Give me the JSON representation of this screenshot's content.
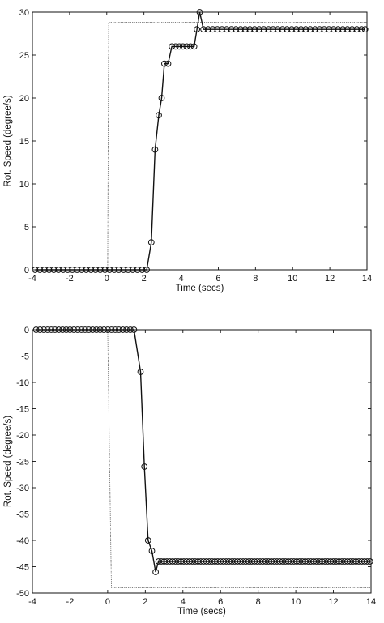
{
  "chart_data": [
    {
      "type": "line",
      "xlabel": "Time (secs)",
      "ylabel": "Rot. Speed (degree/s)",
      "xlim": [
        -4,
        14
      ],
      "ylim": [
        0,
        30
      ],
      "xticks": [
        -4,
        -2,
        0,
        2,
        4,
        6,
        8,
        10,
        12,
        14
      ],
      "yticks": [
        0,
        5,
        10,
        15,
        20,
        25,
        30
      ],
      "x_tick_labels": [
        "-4",
        "-2",
        "0",
        "2",
        "4",
        "6",
        "8",
        "10",
        "12",
        "14"
      ],
      "y_tick_labels": [
        "0",
        "5",
        "10",
        "15",
        "20",
        "25",
        "30"
      ],
      "grid": false,
      "series": [
        {
          "style": "dotted",
          "x": [
            -4,
            0.05,
            0.1,
            14
          ],
          "y": [
            0,
            0,
            28.8,
            28.8
          ]
        },
        {
          "style": "solid-circles",
          "x": [
            -3.85,
            -3.6,
            -3.35,
            -3.1,
            -2.85,
            -2.6,
            -2.35,
            -2.1,
            -1.85,
            -1.6,
            -1.35,
            -1.1,
            -0.85,
            -0.6,
            -0.35,
            -0.1,
            0.15,
            0.4,
            0.65,
            0.9,
            1.15,
            1.4,
            1.65,
            1.9,
            2.15,
            2.4,
            2.6,
            2.8,
            2.95,
            3.1,
            3.3,
            3.5,
            3.7,
            3.9,
            4.1,
            4.3,
            4.5,
            4.7,
            4.85,
            5.0,
            5.2,
            5.45,
            5.7,
            5.95,
            6.2,
            6.45,
            6.7,
            6.95,
            7.2,
            7.45,
            7.7,
            7.95,
            8.2,
            8.45,
            8.7,
            8.95,
            9.2,
            9.45,
            9.7,
            9.95,
            10.2,
            10.45,
            10.7,
            10.95,
            11.2,
            11.45,
            11.7,
            11.95,
            12.2,
            12.45,
            12.7,
            12.95,
            13.2,
            13.45,
            13.7,
            13.9
          ],
          "y": [
            0,
            0,
            0,
            0,
            0,
            0,
            0,
            0,
            0,
            0,
            0,
            0,
            0,
            0,
            0,
            0,
            0,
            0,
            0,
            0,
            0,
            0,
            0,
            0,
            0,
            3.2,
            14,
            18,
            20,
            24,
            24,
            26,
            26,
            26,
            26,
            26,
            26,
            26,
            28,
            30,
            28,
            28,
            28,
            28,
            28,
            28,
            28,
            28,
            28,
            28,
            28,
            28,
            28,
            28,
            28,
            28,
            28,
            28,
            28,
            28,
            28,
            28,
            28,
            28,
            28,
            28,
            28,
            28,
            28,
            28,
            28,
            28,
            28,
            28,
            28,
            28
          ]
        }
      ]
    },
    {
      "type": "line",
      "xlabel": "Time (secs)",
      "ylabel": "Rot. Speed (degree/s)",
      "xlim": [
        -4,
        14
      ],
      "ylim": [
        -50,
        0
      ],
      "xticks": [
        -4,
        -2,
        0,
        2,
        4,
        6,
        8,
        10,
        12,
        14
      ],
      "yticks": [
        0,
        -5,
        -10,
        -15,
        -20,
        -25,
        -30,
        -35,
        -40,
        -45,
        -50
      ],
      "x_tick_labels": [
        "-4",
        "-2",
        "0",
        "2",
        "4",
        "6",
        "8",
        "10",
        "12",
        "14"
      ],
      "y_tick_labels": [
        "0",
        "-5",
        "-10",
        "-15",
        "-20",
        "-25",
        "-30",
        "-35",
        "-40",
        "-45",
        "-50"
      ],
      "grid": false,
      "series": [
        {
          "style": "dotted",
          "x": [
            -4,
            0.0,
            0.2,
            14
          ],
          "y": [
            0,
            0,
            -49,
            -49
          ]
        },
        {
          "style": "solid-circles",
          "x": [
            -3.8,
            -3.6,
            -3.4,
            -3.2,
            -3.0,
            -2.8,
            -2.6,
            -2.4,
            -2.2,
            -2.0,
            -1.8,
            -1.6,
            -1.4,
            -1.2,
            -1.0,
            -0.8,
            -0.6,
            -0.4,
            -0.2,
            0.0,
            0.2,
            0.4,
            0.6,
            0.8,
            1.0,
            1.2,
            1.4,
            1.75,
            1.95,
            2.15,
            2.35,
            2.55,
            2.7,
            2.85,
            3.0,
            3.15,
            3.3,
            3.45,
            3.6,
            3.75,
            3.9,
            4.05,
            4.2,
            4.35,
            4.5,
            4.65,
            4.8,
            4.95,
            5.1,
            5.25,
            5.4,
            5.55,
            5.7,
            5.85,
            6.0,
            6.15,
            6.3,
            6.45,
            6.6,
            6.75,
            6.9,
            7.05,
            7.2,
            7.35,
            7.5,
            7.65,
            7.8,
            7.95,
            8.1,
            8.25,
            8.4,
            8.55,
            8.7,
            8.85,
            9.0,
            9.15,
            9.3,
            9.45,
            9.6,
            9.75,
            9.9,
            10.05,
            10.2,
            10.35,
            10.5,
            10.65,
            10.8,
            10.95,
            11.1,
            11.25,
            11.4,
            11.55,
            11.7,
            11.85,
            12.0,
            12.15,
            12.3,
            12.45,
            12.6,
            12.75,
            12.9,
            13.05,
            13.2,
            13.35,
            13.5,
            13.65,
            13.8,
            13.95
          ],
          "y": [
            0,
            0,
            0,
            0,
            0,
            0,
            0,
            0,
            0,
            0,
            0,
            0,
            0,
            0,
            0,
            0,
            0,
            0,
            0,
            0,
            0,
            0,
            0,
            0,
            0,
            0,
            0,
            -8,
            -26,
            -40,
            -42,
            -46,
            -44,
            -44,
            -44,
            -44,
            -44,
            -44,
            -44,
            -44,
            -44,
            -44,
            -44,
            -44,
            -44,
            -44,
            -44,
            -44,
            -44,
            -44,
            -44,
            -44,
            -44,
            -44,
            -44,
            -44,
            -44,
            -44,
            -44,
            -44,
            -44,
            -44,
            -44,
            -44,
            -44,
            -44,
            -44,
            -44,
            -44,
            -44,
            -44,
            -44,
            -44,
            -44,
            -44,
            -44,
            -44,
            -44,
            -44,
            -44,
            -44,
            -44,
            -44,
            -44,
            -44,
            -44,
            -44,
            -44,
            -44,
            -44,
            -44,
            -44,
            -44,
            -44,
            -44,
            -44,
            -44,
            -44,
            -44,
            -44,
            -44,
            -44,
            -44,
            -44,
            -44,
            -44,
            -44,
            -44
          ]
        }
      ]
    }
  ]
}
